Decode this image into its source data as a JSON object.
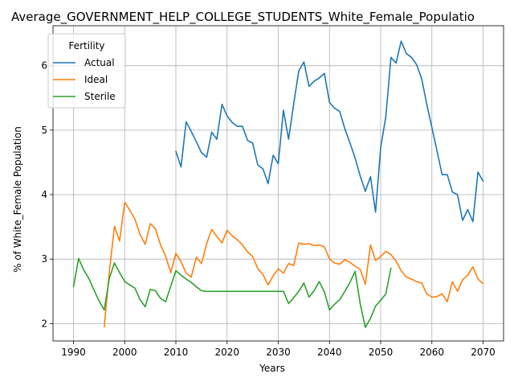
{
  "chart_data": {
    "type": "line",
    "title": "Average_GOVERNMENT_HELP_COLLEGE_STUDENTS_White_Female_Populatio",
    "xlabel": "Years",
    "ylabel": "% of White_Female Population",
    "xlim": [
      1986,
      2074
    ],
    "ylim": [
      1.73,
      6.62
    ],
    "xticks": [
      1990,
      2000,
      2010,
      2020,
      2030,
      2040,
      2050,
      2060,
      2070
    ],
    "yticks": [
      2,
      3,
      4,
      5,
      6
    ],
    "grid": true,
    "legend": {
      "title": "Fertility",
      "position": "top-left"
    },
    "series": [
      {
        "name": "Actual",
        "color": "#1f77b4",
        "x": [
          2010,
          2011,
          2012,
          2013,
          2014,
          2015,
          2016,
          2017,
          2018,
          2019,
          2020,
          2021,
          2022,
          2023,
          2024,
          2025,
          2026,
          2027,
          2028,
          2029,
          2030,
          2031,
          2032,
          2033,
          2034,
          2035,
          2036,
          2037,
          2038,
          2039,
          2040,
          2041,
          2042,
          2043,
          2044,
          2045,
          2046,
          2047,
          2048,
          2049,
          2050,
          2051,
          2052,
          2053,
          2054,
          2055,
          2056,
          2057,
          2058,
          2059,
          2060,
          2061,
          2062,
          2063,
          2064,
          2065,
          2066,
          2067,
          2068,
          2069,
          2070
        ],
        "y": [
          4.67,
          4.43,
          5.13,
          4.98,
          4.82,
          4.65,
          4.58,
          4.97,
          4.86,
          5.4,
          5.22,
          5.12,
          5.06,
          5.06,
          4.84,
          4.8,
          4.46,
          4.4,
          4.17,
          4.61,
          4.48,
          5.31,
          4.86,
          5.4,
          5.92,
          6.06,
          5.68,
          5.76,
          5.81,
          5.88,
          5.43,
          5.34,
          5.29,
          5.02,
          4.8,
          4.57,
          4.29,
          4.05,
          4.28,
          3.73,
          4.73,
          5.21,
          6.13,
          6.04,
          6.38,
          6.19,
          6.13,
          6.02,
          5.8,
          5.4,
          5.04,
          4.68,
          4.31,
          4.31,
          4.04,
          4.0,
          3.6,
          3.77,
          3.58,
          4.35,
          4.21
        ]
      },
      {
        "name": "Ideal",
        "color": "#ff7f0e",
        "x": [
          1996,
          1997,
          1998,
          1999,
          2000,
          2001,
          2002,
          2003,
          2004,
          2005,
          2006,
          2007,
          2008,
          2009,
          2010,
          2011,
          2012,
          2013,
          2014,
          2015,
          2016,
          2017,
          2018,
          2019,
          2020,
          2021,
          2022,
          2023,
          2024,
          2025,
          2026,
          2027,
          2028,
          2029,
          2030,
          2031,
          2032,
          2033,
          2034,
          2035,
          2036,
          2037,
          2038,
          2039,
          2040,
          2041,
          2042,
          2043,
          2044,
          2045,
          2046,
          2047,
          2048,
          2049,
          2050,
          2051,
          2052,
          2053,
          2054,
          2055,
          2056,
          2057,
          2058,
          2059,
          2060,
          2061,
          2062,
          2063,
          2064,
          2065,
          2066,
          2067,
          2068,
          2069,
          2070
        ],
        "y": [
          1.95,
          2.8,
          3.51,
          3.28,
          3.88,
          3.76,
          3.62,
          3.38,
          3.23,
          3.55,
          3.47,
          3.22,
          3.04,
          2.79,
          3.09,
          2.96,
          2.78,
          2.72,
          3.03,
          2.93,
          3.24,
          3.46,
          3.35,
          3.25,
          3.45,
          3.36,
          3.3,
          3.22,
          3.11,
          3.04,
          2.85,
          2.76,
          2.6,
          2.74,
          2.85,
          2.78,
          2.93,
          2.9,
          3.25,
          3.23,
          3.24,
          3.21,
          3.22,
          3.19,
          3.0,
          2.94,
          2.92,
          2.99,
          2.95,
          2.89,
          2.84,
          2.61,
          3.22,
          2.98,
          3.04,
          3.12,
          3.07,
          2.97,
          2.82,
          2.72,
          2.69,
          2.65,
          2.63,
          2.46,
          2.41,
          2.42,
          2.46,
          2.34,
          2.65,
          2.5,
          2.68,
          2.75,
          2.88,
          2.69,
          2.62
        ]
      },
      {
        "name": "Sterile",
        "color": "#2ca02c",
        "x": [
          1990,
          1991,
          1992,
          1993,
          1994,
          1995,
          1996,
          1997,
          1998,
          1999,
          2000,
          2001,
          2002,
          2003,
          2004,
          2005,
          2006,
          2007,
          2008,
          2009,
          2010,
          2011,
          2012,
          2013,
          2014,
          2015,
          2016,
          2017,
          2018,
          2019,
          2020,
          2021,
          2022,
          2023,
          2024,
          2025,
          2026,
          2027,
          2028,
          2029,
          2030,
          2031,
          2032,
          2033,
          2034,
          2035,
          2036,
          2037,
          2038,
          2039,
          2040,
          2041,
          2042,
          2043,
          2044,
          2045,
          2046,
          2047,
          2048,
          2049,
          2050,
          2051,
          2052
        ],
        "y": [
          2.57,
          3.01,
          2.83,
          2.7,
          2.52,
          2.35,
          2.21,
          2.7,
          2.94,
          2.79,
          2.65,
          2.6,
          2.55,
          2.37,
          2.26,
          2.53,
          2.51,
          2.39,
          2.34,
          2.58,
          2.82,
          2.75,
          2.69,
          2.64,
          2.57,
          2.51,
          2.5,
          2.5,
          2.5,
          2.5,
          2.5,
          2.5,
          2.5,
          2.5,
          2.5,
          2.5,
          2.5,
          2.5,
          2.5,
          2.5,
          2.5,
          2.5,
          2.31,
          2.4,
          2.5,
          2.63,
          2.41,
          2.51,
          2.65,
          2.49,
          2.21,
          2.3,
          2.37,
          2.5,
          2.64,
          2.81,
          2.31,
          1.94,
          2.08,
          2.27,
          2.36,
          2.46,
          2.86
        ]
      }
    ]
  }
}
